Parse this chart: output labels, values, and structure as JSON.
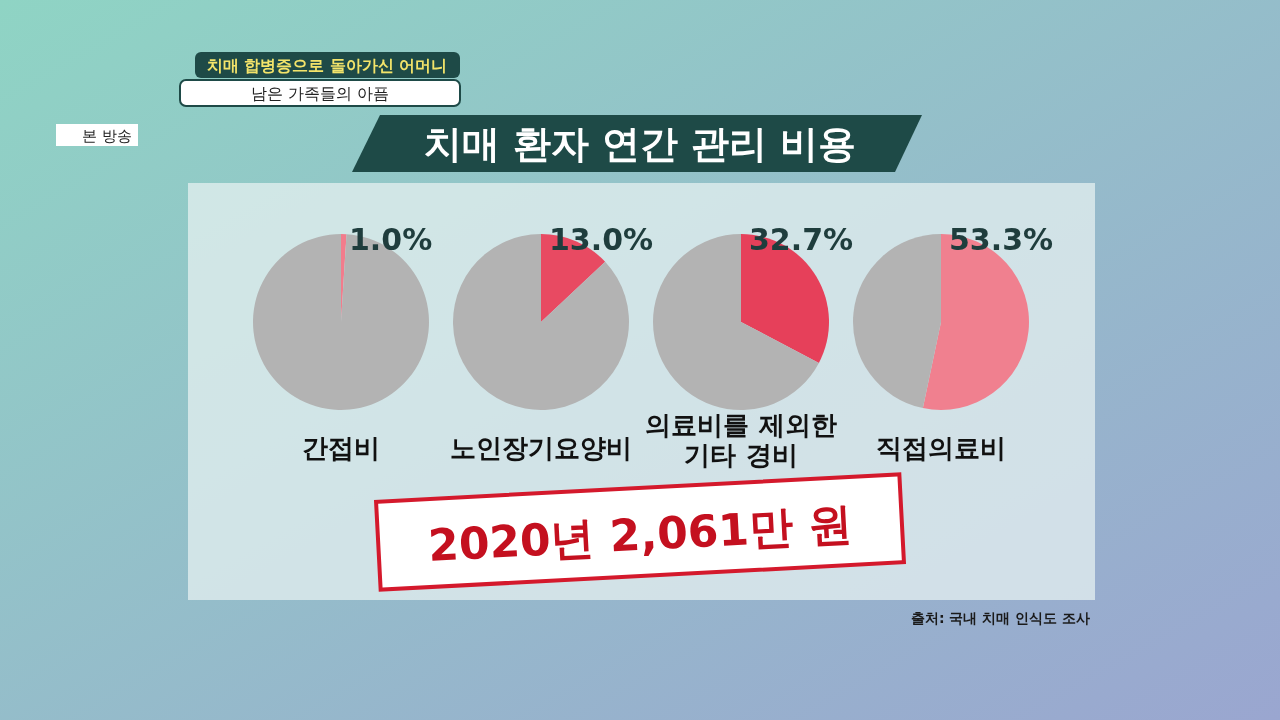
{
  "chart_data": [
    {
      "type": "pie",
      "title": "치매 환자 연간 관리 비용",
      "xlabel": "간접비",
      "categories": [
        null,
        null
      ],
      "values": [
        1.0,
        99.0
      ],
      "colors": [
        "#f27c8c",
        "#b3b3b3"
      ],
      "value_labels": [
        "1.0%",
        null
      ],
      "annotations": [
        "2020년 2,061만 원",
        "출처: 국내 치매 인식도 조사",
        "치매 합병증으로 돌아가신 어머니",
        "남은 가족들의 아픔",
        "본 방송"
      ]
    },
    {
      "type": "pie",
      "xlabel": "노인장기요양비",
      "categories": [
        null,
        null
      ],
      "values": [
        13.0,
        87.0
      ],
      "colors": [
        "#e84a62",
        "#b3b3b3"
      ],
      "value_labels": [
        "13.0%",
        null
      ]
    },
    {
      "type": "pie",
      "xlabel": "의료비를 제외한\n기타 경비",
      "categories": [
        null,
        null
      ],
      "values": [
        32.7,
        67.3
      ],
      "colors": [
        "#e6405a",
        "#b3b3b3"
      ],
      "value_labels": [
        "32.7%",
        null
      ]
    },
    {
      "type": "pie",
      "xlabel": "직접의료비",
      "categories": [
        null,
        null
      ],
      "values": [
        53.3,
        46.7
      ],
      "colors": [
        "#f0808f",
        "#b3b3b3"
      ],
      "value_labels": [
        "53.3%",
        null
      ]
    }
  ]
}
